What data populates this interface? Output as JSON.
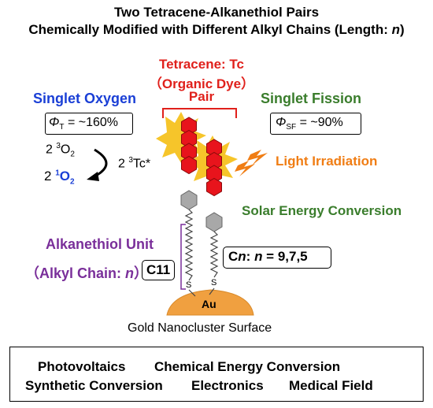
{
  "title": {
    "line1": "Two Tetracene-Alkanethiol Pairs",
    "line2_prefix": "Chemically Modified with Different Alkyl Chains (Length: ",
    "line2_var": "n",
    "line2_suffix": ")"
  },
  "tetracene_label": {
    "line1": "Tetracene: Tc",
    "line2": "（Organic Dye）",
    "line3": "Pair"
  },
  "singlet_oxygen": {
    "heading": "Singlet Oxygen",
    "yield_symbol": "Φ",
    "yield_sub": "T",
    "yield_value": " = ~160%",
    "reactant_coef": "2 ",
    "reactant_sup": "3",
    "reactant_formula": "O",
    "reactant_sub": "2",
    "product_coef": "2 ",
    "product_sup": "1",
    "product_formula": "O",
    "product_sub": "2",
    "triplet_coef": "2 ",
    "triplet_sup": "3",
    "triplet_formula": "Tc*"
  },
  "singlet_fission": {
    "heading": "Singlet Fission",
    "yield_symbol": "Φ",
    "yield_sub": "SF",
    "yield_value": " = ~90%"
  },
  "light_irradiation": "Light Irradiation",
  "solar_energy": "Solar Energy Conversion",
  "alkanethiol": {
    "heading": "Alkanethiol Unit",
    "subheading_prefix": "（Alkyl Chain: ",
    "subheading_var": "n",
    "subheading_suffix": "）",
    "c11": "C11",
    "cn_prefix": "C",
    "cn_var": "n",
    "cn_mid": ": ",
    "cn_var2": "n",
    "cn_values": " = 9,7,5"
  },
  "sulfur_label": "S",
  "gold_label": "Au",
  "surface_label": "Gold Nanocluster Surface",
  "applications": {
    "row1": [
      "Photovoltaics",
      "Chemical Energy Conversion"
    ],
    "row2": [
      "Synthetic Conversion",
      "Electronics",
      "Medical Field"
    ]
  },
  "colors": {
    "red": "#e0201b",
    "blue": "#1a3fd6",
    "green": "#3a7d2c",
    "orange": "#f07d14",
    "purple": "#7a2f9a",
    "gold": "#f0a040",
    "hexagon_red": "#e8141c",
    "hexagon_gray": "#a8a8a8"
  }
}
